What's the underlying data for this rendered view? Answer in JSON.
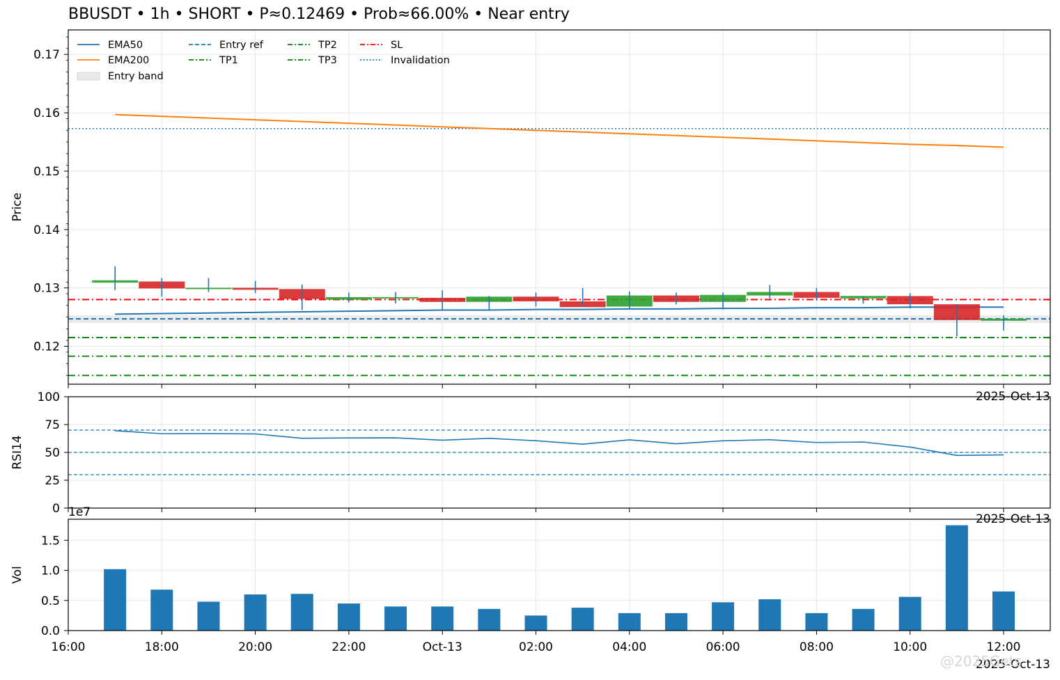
{
  "title": "BBUSDT • 1h • SHORT • P≈0.12469 • Prob≈66.00% • Near entry",
  "watermark": "@2025Gets",
  "chart_data": [
    {
      "type": "candlestick",
      "ylabel": "Price",
      "ylim": [
        0.1135,
        0.1742
      ],
      "yticks": [
        "0.12",
        "0.13",
        "0.14",
        "0.15",
        "0.16",
        "0.17"
      ],
      "ytick_values": [
        0.12,
        0.13,
        0.14,
        0.15,
        0.16,
        0.17
      ],
      "corner_label": "2025-Oct-13",
      "grid": true,
      "legend_position": "top-left",
      "legend": [
        {
          "label": "EMA50",
          "color": "#1f77b4",
          "style": "solid"
        },
        {
          "label": "EMA200",
          "color": "#ff7f0e",
          "style": "solid"
        },
        {
          "label": "Entry band",
          "color": "#e6e6e6",
          "style": "band"
        },
        {
          "label": "Entry ref",
          "color": "#1f77b4",
          "style": "dashed"
        },
        {
          "label": "TP1",
          "color": "#008000",
          "style": "dashdot"
        },
        {
          "label": "TP2",
          "color": "#008000",
          "style": "dashdot"
        },
        {
          "label": "TP3",
          "color": "#008000",
          "style": "dashdot"
        },
        {
          "label": "SL",
          "color": "#ff0000",
          "style": "dashdot"
        },
        {
          "label": "Invalidation",
          "color": "#1f77b4",
          "style": "dotted"
        }
      ],
      "times": [
        "17:00",
        "18:00",
        "19:00",
        "20:00",
        "21:00",
        "22:00",
        "23:00",
        "00:00",
        "01:00",
        "02:00",
        "03:00",
        "04:00",
        "05:00",
        "06:00",
        "07:00",
        "08:00",
        "09:00",
        "10:00",
        "11:00",
        "12:00"
      ],
      "ohlc": [
        [
          0.1309,
          0.1337,
          0.1296,
          0.1313
        ],
        [
          0.1311,
          0.1317,
          0.1285,
          0.1299
        ],
        [
          0.1299,
          0.1317,
          0.1293,
          0.1299
        ],
        [
          0.1299,
          0.1312,
          0.1291,
          0.1298
        ],
        [
          0.1298,
          0.1306,
          0.1262,
          0.1281
        ],
        [
          0.1281,
          0.1292,
          0.1275,
          0.1283
        ],
        [
          0.1283,
          0.1293,
          0.1273,
          0.1283
        ],
        [
          0.1283,
          0.1296,
          0.1262,
          0.1276
        ],
        [
          0.1276,
          0.1286,
          0.1263,
          0.1285
        ],
        [
          0.1285,
          0.1292,
          0.1268,
          0.1277
        ],
        [
          0.1277,
          0.13,
          0.1269,
          0.1267
        ],
        [
          0.1268,
          0.1294,
          0.1265,
          0.1287
        ],
        [
          0.1287,
          0.1292,
          0.1272,
          0.1276
        ],
        [
          0.1276,
          0.1292,
          0.1263,
          0.1288
        ],
        [
          0.1287,
          0.1305,
          0.1282,
          0.1293
        ],
        [
          0.1293,
          0.13,
          0.1279,
          0.1283
        ],
        [
          0.1283,
          0.1286,
          0.1273,
          0.1285
        ],
        [
          0.1286,
          0.1291,
          0.1265,
          0.1272
        ],
        [
          0.1272,
          0.1272,
          0.1217,
          0.1245
        ],
        [
          0.1245,
          0.1253,
          0.1227,
          0.1246
        ]
      ],
      "ema50": [
        0.1255,
        0.1256,
        0.1257,
        0.1258,
        0.1259,
        0.126,
        0.1261,
        0.1262,
        0.1262,
        0.1263,
        0.1263,
        0.1264,
        0.1264,
        0.1265,
        0.1265,
        0.1266,
        0.1266,
        0.1267,
        0.1267,
        0.1267
      ],
      "ema200": [
        0.1597,
        0.1594,
        0.1591,
        0.1588,
        0.1585,
        0.1582,
        0.1579,
        0.1576,
        0.1573,
        0.157,
        0.1567,
        0.1564,
        0.1561,
        0.1558,
        0.1555,
        0.1552,
        0.1549,
        0.1546,
        0.1544,
        0.1541
      ],
      "entry_band": [
        0.124,
        0.1253
      ],
      "entry_ref": 0.12469,
      "tp1": 0.1215,
      "tp2": 0.1183,
      "tp3": 0.115,
      "sl": 0.128,
      "invalidation": 0.1573
    },
    {
      "type": "line",
      "ylabel": "RSI14",
      "ylim": [
        0,
        100
      ],
      "yticks": [
        "0",
        "25",
        "50",
        "75",
        "100"
      ],
      "ytick_values": [
        0,
        25,
        50,
        75,
        100
      ],
      "corner_label": "2025-Oct-13",
      "reference_lines": [
        70,
        50,
        30
      ],
      "values": [
        69.5,
        66.8,
        66.9,
        66.6,
        62.7,
        63.0,
        63.1,
        61.0,
        62.6,
        60.5,
        57.4,
        61.3,
        57.8,
        60.4,
        61.4,
        58.9,
        59.3,
        54.8,
        47.3,
        47.8
      ]
    },
    {
      "type": "bar",
      "ylabel": "Vol",
      "ylim": [
        0,
        18500000
      ],
      "yticks": [
        "0.0",
        "0.5",
        "1.0",
        "1.5"
      ],
      "ytick_values": [
        0,
        5000000,
        10000000,
        15000000
      ],
      "scale_label": "1e7",
      "values": [
        10200000,
        6800000,
        4800000,
        6000000,
        6100000,
        4500000,
        4000000,
        4000000,
        3600000,
        2500000,
        3800000,
        2900000,
        2900000,
        4700000,
        5200000,
        2900000,
        3600000,
        5600000,
        17500000,
        6500000
      ]
    }
  ],
  "xaxis": {
    "tick_labels": [
      "16:00",
      "18:00",
      "20:00",
      "22:00",
      "Oct-13",
      "02:00",
      "04:00",
      "06:00",
      "08:00",
      "10:00",
      "12:00"
    ],
    "tick_hours": [
      0,
      2,
      4,
      6,
      8,
      10,
      12,
      14,
      16,
      18,
      20
    ],
    "corner_label": "2025-Oct-13"
  },
  "colors": {
    "up": "#2ca02c",
    "down": "#d62728",
    "line": "#1f77b4",
    "ema200": "#ff7f0e",
    "tp": "#008000",
    "sl": "#ff0000",
    "grid": "#e6e6e6"
  }
}
